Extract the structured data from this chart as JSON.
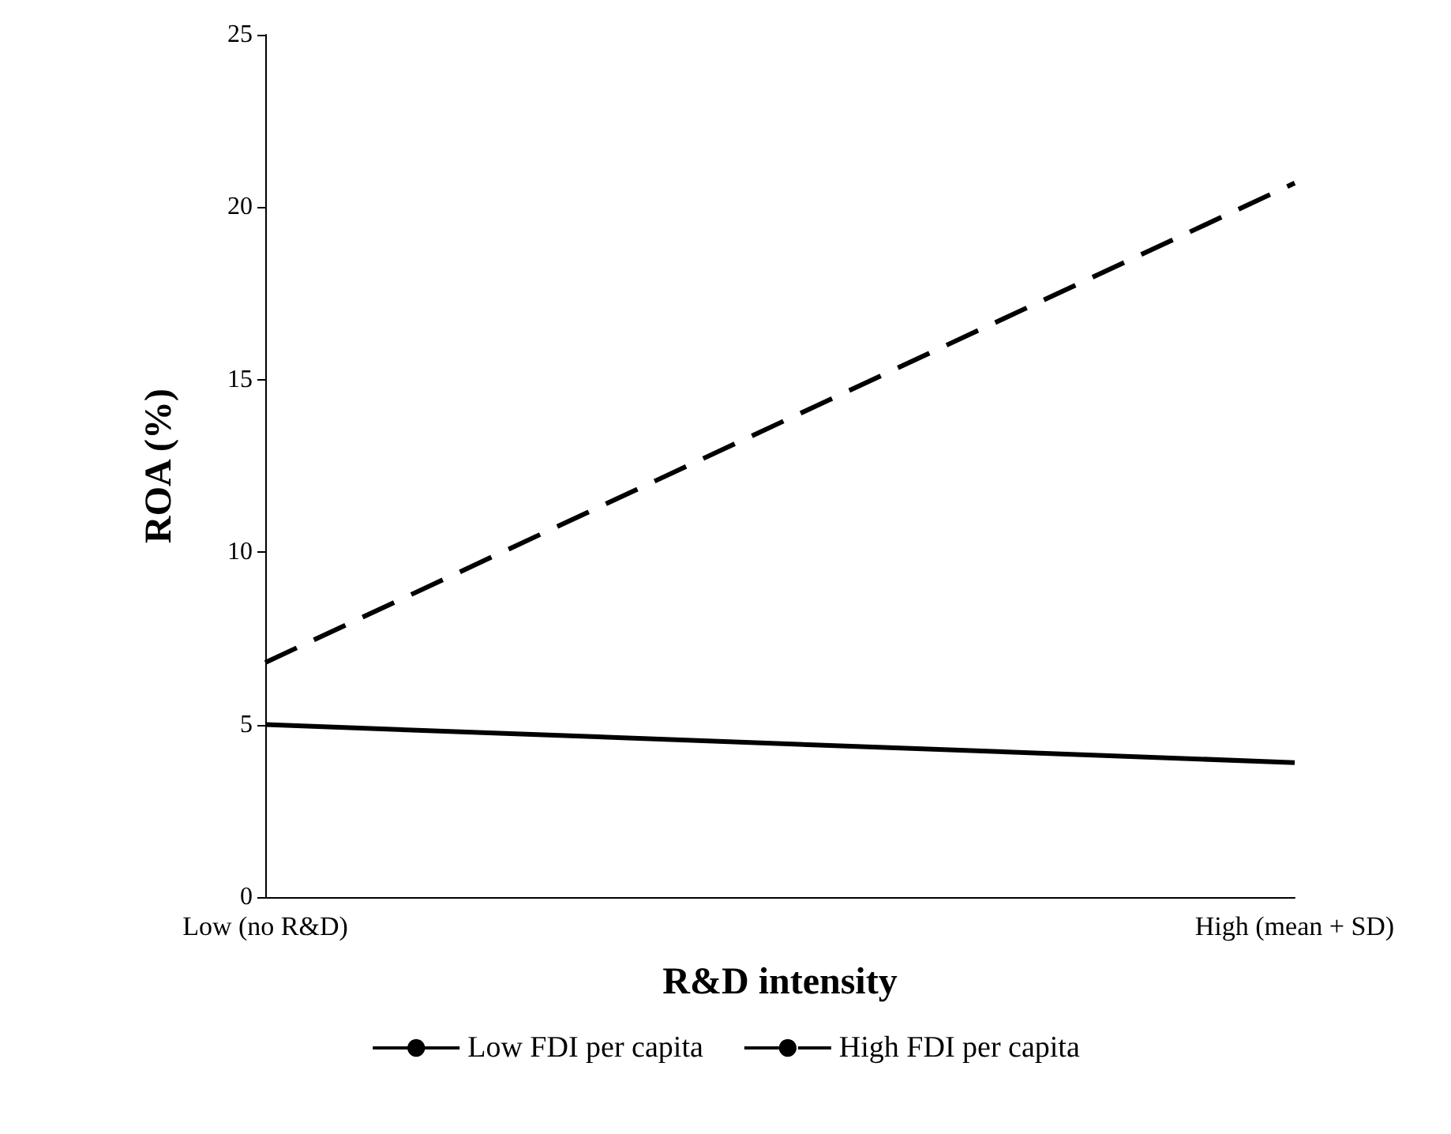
{
  "chart_data": {
    "type": "line",
    "xlabel": "R&D intensity",
    "ylabel": "ROA (%)",
    "categories": [
      "Low (no R&D)",
      "High (mean + SD)"
    ],
    "series": [
      {
        "name": "Low FDI per capita",
        "color": "#000000",
        "line_style": "solid",
        "values": [
          5.0,
          3.9
        ]
      },
      {
        "name": "High FDI per capita",
        "color": "#000000",
        "line_style": "dashed",
        "values": [
          6.8,
          20.7
        ]
      }
    ],
    "ylim": [
      0,
      25
    ],
    "yticks": [
      0,
      5,
      10,
      15,
      20,
      25
    ],
    "grid": false,
    "legend": "bottom",
    "marker": "none"
  }
}
